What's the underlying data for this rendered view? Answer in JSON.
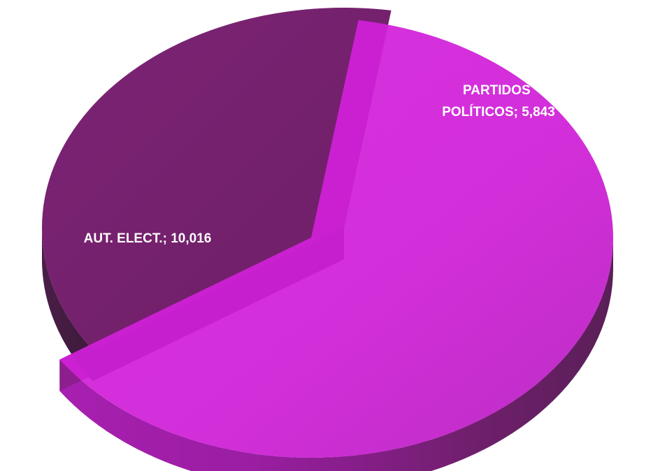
{
  "chart_data": {
    "type": "pie",
    "style": "3d-exploded",
    "title": "",
    "legend": "none",
    "slices": [
      {
        "category": "AUT. ELECT.",
        "value": 10016,
        "label": "AUT. ELECT.; 10,016",
        "color": "#d01fd8",
        "exploded": false
      },
      {
        "category": "PARTIDOS POLÍTICOS",
        "value": 5843,
        "label_lines": [
          "PARTIDOS",
          "POLÍTICOS; 5,843"
        ],
        "color": "#7a2272",
        "exploded": true
      }
    ]
  }
}
